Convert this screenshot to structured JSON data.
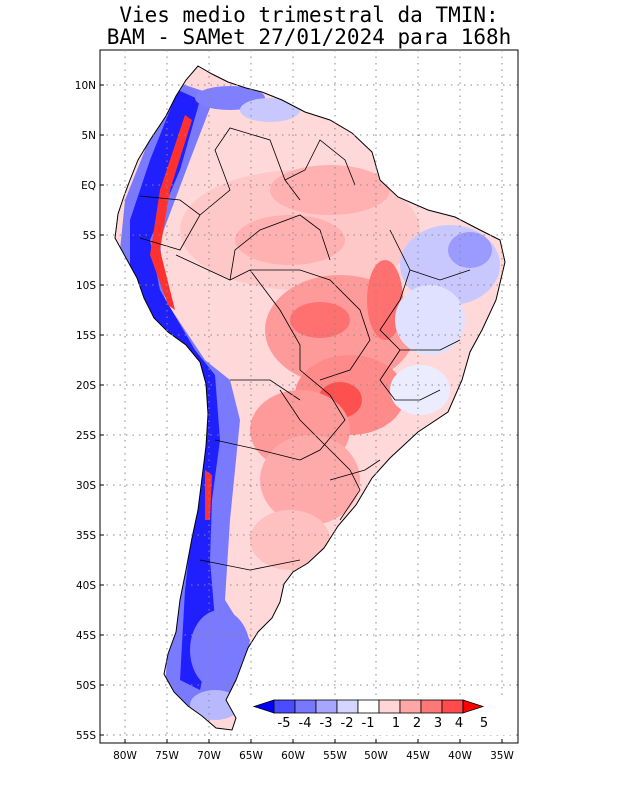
{
  "title": {
    "line1": "Vies medio trimestral da TMIN:",
    "line2": "BAM - SAMet 27/01/2024  para 168h"
  },
  "map": {
    "lat_labels": [
      "10N",
      "5N",
      "EQ",
      "5S",
      "10S",
      "15S",
      "20S",
      "25S",
      "30S",
      "35S",
      "40S",
      "45S",
      "50S",
      "55S"
    ],
    "lon_labels": [
      "80W",
      "75W",
      "70W",
      "65W",
      "60W",
      "55W",
      "50W",
      "45W",
      "40W",
      "35W"
    ]
  },
  "colorbar": {
    "labels": [
      "-5",
      "-4",
      "-3",
      "-2",
      "-1",
      "1",
      "2",
      "3",
      "4",
      "5"
    ],
    "colors": [
      "#0000ff",
      "#4b4bff",
      "#7878ff",
      "#a6a6ff",
      "#d5d5ff",
      "#ffffff",
      "#ffd5d5",
      "#ffa6a6",
      "#ff7878",
      "#ff4b4b",
      "#ff0000"
    ]
  }
}
